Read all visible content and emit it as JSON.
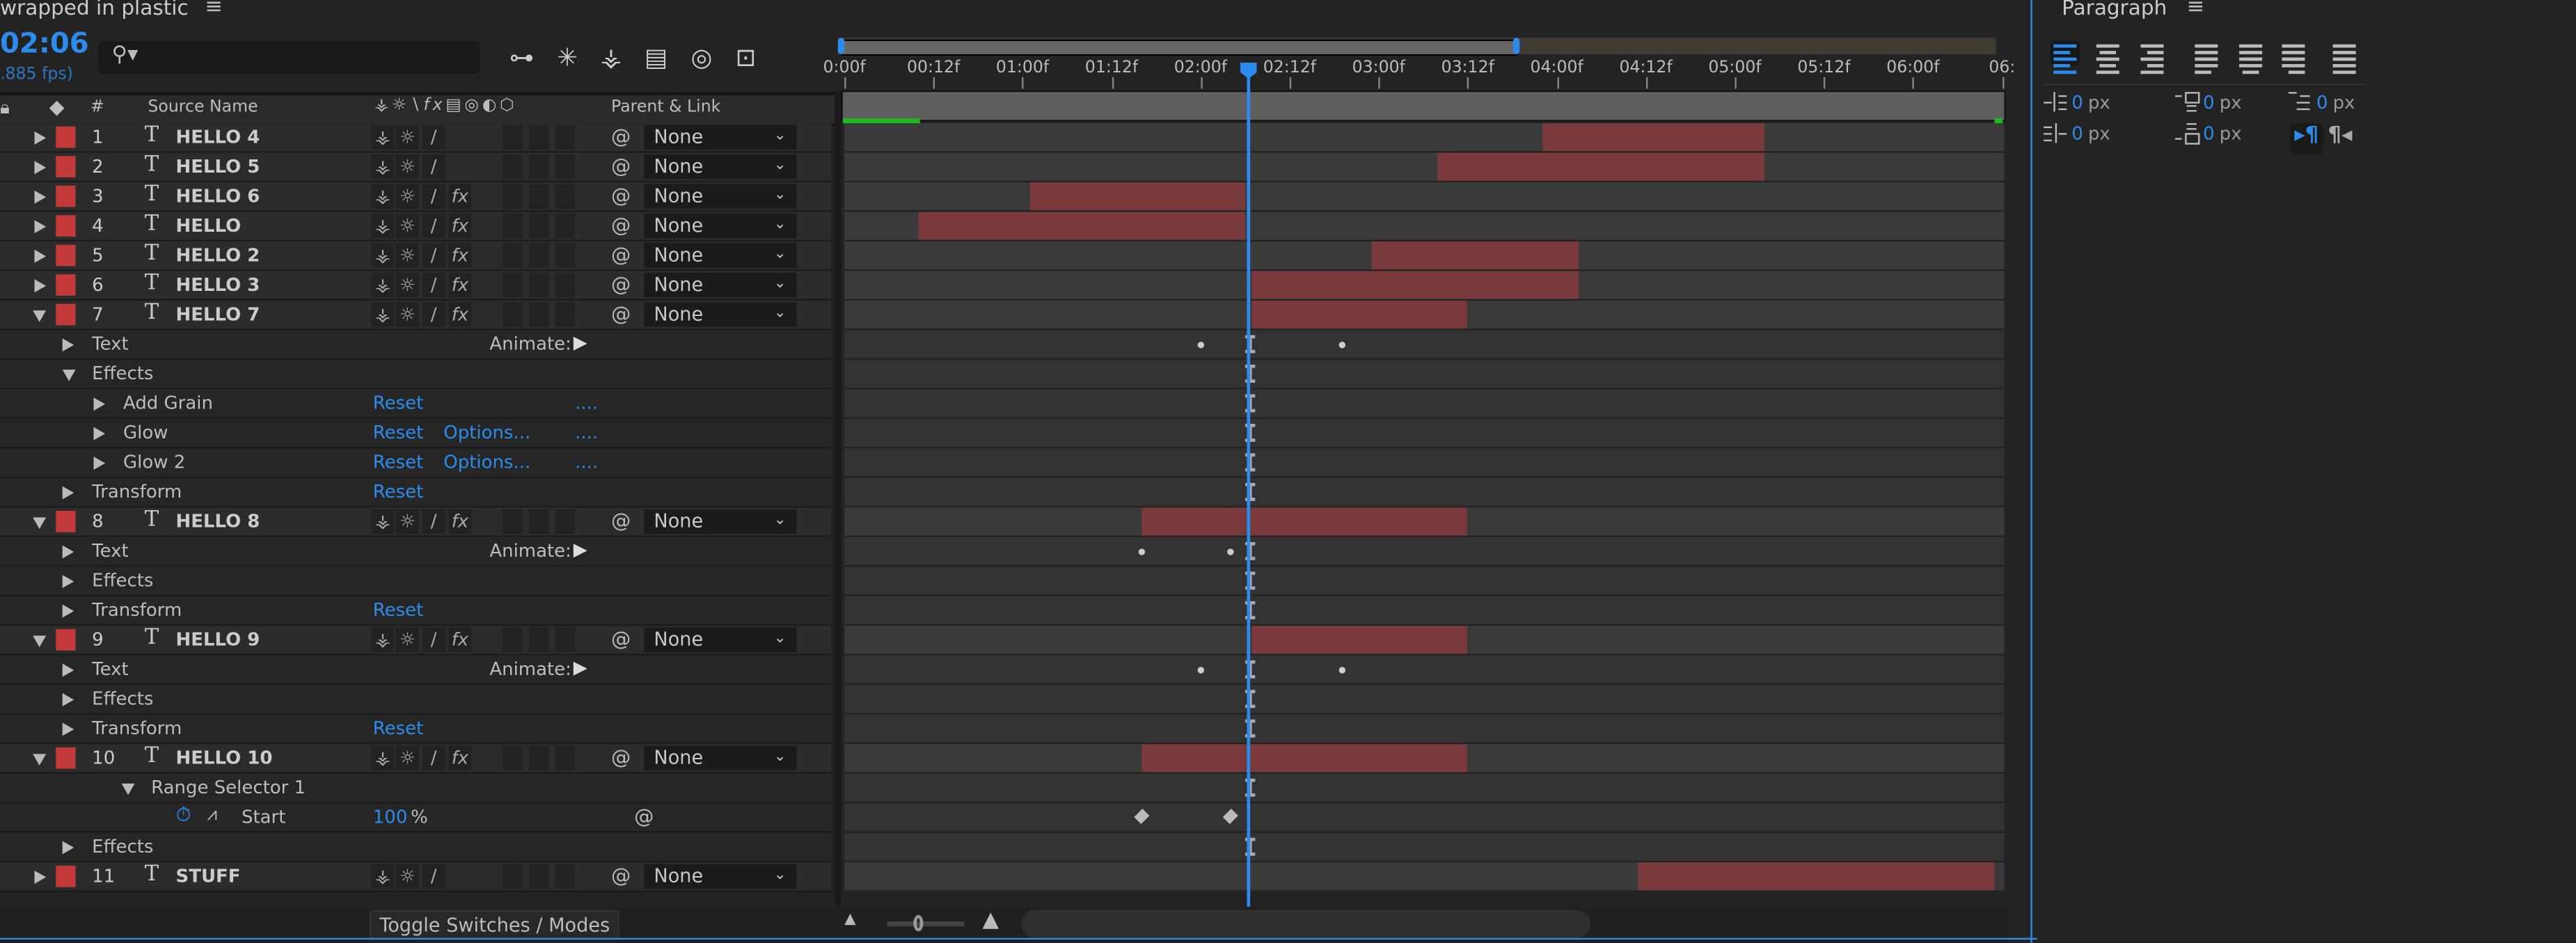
{
  "comp": {
    "title": "wrapped in plastic",
    "menu_icon": "hamburger-icon",
    "timecode": "02:06",
    "fps": ".885 fps)",
    "search_placeholder": ""
  },
  "toolbar_icons": [
    "comp-flowchart-icon",
    "draft-3d-icon",
    "shy-layers-icon",
    "frame-blending-icon",
    "motion-blur-icon",
    "graph-editor-icon"
  ],
  "columns": {
    "number": "#",
    "source_name": "Source Name",
    "parent_link": "Parent & Link"
  },
  "timeline": {
    "fps": 24,
    "ruler": [
      "0:00f",
      "00:12f",
      "01:00f",
      "01:12f",
      "02:00f",
      "02:12f",
      "03:00f",
      "03:12f",
      "04:00f",
      "04:12f",
      "05:00f",
      "05:12f",
      "06:00f",
      "06:"
    ],
    "current_frame": 54,
    "colors": {
      "label": "#c23a3a",
      "bar": "#7a3a3c",
      "accent": "#2d8ceb"
    }
  },
  "rows": [
    {
      "type": "layer",
      "num": "1",
      "name": "HELLO 4",
      "fx": false,
      "parent": "None",
      "in": 94,
      "out": 124
    },
    {
      "type": "layer",
      "num": "2",
      "name": "HELLO 5",
      "fx": false,
      "parent": "None",
      "in": 80,
      "out": 124
    },
    {
      "type": "layer",
      "num": "3",
      "name": "HELLO 6",
      "fx": true,
      "parent": "None",
      "in": 25,
      "out": 54
    },
    {
      "type": "layer",
      "num": "4",
      "name": "HELLO",
      "fx": true,
      "parent": "None",
      "in": 10,
      "out": 54
    },
    {
      "type": "layer",
      "num": "5",
      "name": "HELLO 2",
      "fx": true,
      "parent": "None",
      "in": 71,
      "out": 99
    },
    {
      "type": "layer",
      "num": "6",
      "name": "HELLO 3",
      "fx": true,
      "parent": "None",
      "in": 55,
      "out": 99
    },
    {
      "type": "layer",
      "num": "7",
      "name": "HELLO 7",
      "fx": true,
      "parent": "None",
      "in": 55,
      "out": 84,
      "open": true
    },
    {
      "type": "prop",
      "level": 1,
      "label": "Text",
      "animate": "Animate:",
      "dots": [
        48,
        67
      ],
      "ibeam": true
    },
    {
      "type": "prop",
      "level": 1,
      "label": "Effects",
      "open": true,
      "ibeam": true
    },
    {
      "type": "prop",
      "level": 2,
      "label": "Add Grain",
      "reset": "Reset",
      "more": "....",
      "ibeam": true
    },
    {
      "type": "prop",
      "level": 2,
      "label": "Glow",
      "reset": "Reset",
      "options": "Options...",
      "more": "....",
      "ibeam": true
    },
    {
      "type": "prop",
      "level": 2,
      "label": "Glow 2",
      "reset": "Reset",
      "options": "Options...",
      "more": "....",
      "ibeam": true
    },
    {
      "type": "prop",
      "level": 1,
      "label": "Transform",
      "reset": "Reset",
      "ibeam": true
    },
    {
      "type": "layer",
      "num": "8",
      "name": "HELLO 8",
      "fx": true,
      "parent": "None",
      "in": 40,
      "out": 84,
      "open": true
    },
    {
      "type": "prop",
      "level": 1,
      "label": "Text",
      "animate": "Animate:",
      "dots": [
        40,
        52
      ],
      "ibeam": true
    },
    {
      "type": "prop",
      "level": 1,
      "label": "Effects",
      "ibeam": true
    },
    {
      "type": "prop",
      "level": 1,
      "label": "Transform",
      "reset": "Reset",
      "ibeam": true
    },
    {
      "type": "layer",
      "num": "9",
      "name": "HELLO 9",
      "fx": true,
      "parent": "None",
      "in": 55,
      "out": 84,
      "open": true
    },
    {
      "type": "prop",
      "level": 1,
      "label": "Text",
      "animate": "Animate:",
      "dots": [
        48,
        67
      ],
      "ibeam": true
    },
    {
      "type": "prop",
      "level": 1,
      "label": "Effects",
      "ibeam": true
    },
    {
      "type": "prop",
      "level": 1,
      "label": "Transform",
      "reset": "Reset",
      "ibeam": true
    },
    {
      "type": "layer",
      "num": "10",
      "name": "HELLO 10",
      "fx": true,
      "parent": "None",
      "in": 40,
      "out": 84,
      "open": true
    },
    {
      "type": "prop",
      "level": 2,
      "label": "Range Selector 1",
      "open": true,
      "ibeam": true
    },
    {
      "type": "value",
      "label": "Start",
      "value": "100",
      "unit": "%",
      "diamonds": [
        40,
        52
      ]
    },
    {
      "type": "prop",
      "level": 1,
      "label": "Effects",
      "ibeam": true
    },
    {
      "type": "layer",
      "num": "11",
      "name": "STUFF",
      "fx": false,
      "parent": "None",
      "in": 107,
      "out": 155
    }
  ],
  "footer": {
    "toggle_label": "Toggle Switches / Modes",
    "zoom_level": 0.15
  },
  "paragraph": {
    "title": "Paragraph",
    "align_buttons": [
      "align-left",
      "align-center",
      "align-right",
      "justify-last-left",
      "justify-last-center",
      "justify-last-right",
      "justify-all"
    ],
    "selected_align": "align-left",
    "indent_left": {
      "value": "0",
      "unit": "px"
    },
    "space_before": {
      "value": "0",
      "unit": "px"
    },
    "first_line_indent": {
      "value": "0",
      "unit": "px"
    },
    "indent_right": {
      "value": "0",
      "unit": "px"
    },
    "space_after": {
      "value": "0",
      "unit": "px"
    },
    "direction": "left-to-right"
  }
}
